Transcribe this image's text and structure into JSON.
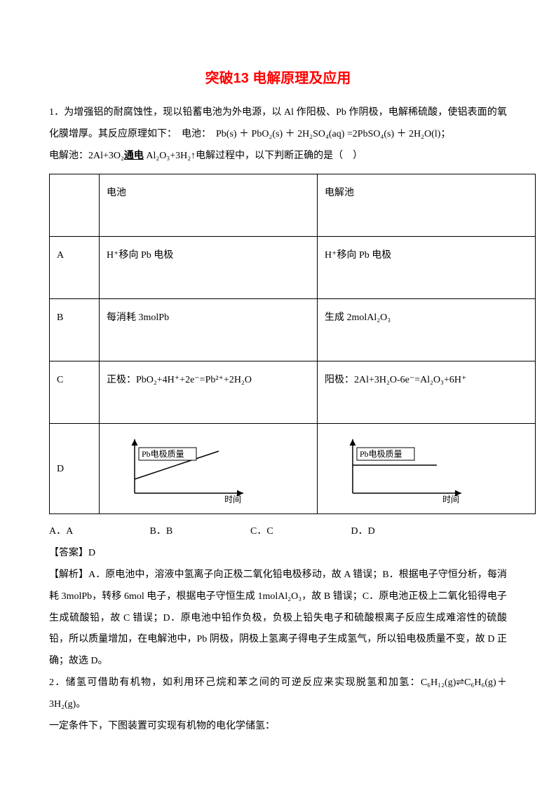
{
  "title": "突破13 电解原理及应用",
  "q1": {
    "intro1": "1．为增强铝的耐腐蚀性，现以铅蓄电池为外电源，以 Al 作阳极、Pb 作阴极，电解稀硫酸，使铝表面的氧化膜增厚。其反应原理如下：　电池：　Pb(s) ＋ PbO₂(s) ＋ 2H₂SO₄(aq) =2PbSO₄(s) ＋ 2H₂O(l)；",
    "intro2_pre": "电解池：2Al+3O₂",
    "intro2_mid": "通电",
    "intro2_post": "Al₂O₃+3H₂↑电解过程中，以下判断正确的是（　）",
    "header_c2": "电池",
    "header_c3": "电解池",
    "rowA_c1": "A",
    "rowA_c2": "H⁺移向 Pb 电极",
    "rowA_c3": "H⁺移向 Pb 电极",
    "rowB_c1": "B",
    "rowB_c2": "每消耗 3molPb",
    "rowB_c3": "生成 2molAl₂O₃",
    "rowC_c1": "C",
    "rowC_c2": "正极：PbO₂+4H⁺+2e⁻=Pb²⁺+2H₂O",
    "rowC_c3": "阳极：2Al+3H₂O-6e⁻=Al₂O₃+6H⁺",
    "rowD_c1": "D",
    "graph_ylabel": "Pb电极质量",
    "graph_xlabel": "时间",
    "graph_stroke": "#000000",
    "graph_left_rising": true,
    "graph_right_rising": false,
    "optA": "A．A",
    "optB": "B．B",
    "optC": "C．C",
    "optD": "D．D",
    "answer": "【答案】D",
    "explain": "【解析】A．原电池中，溶液中氢离子向正极二氧化铅电极移动，故 A 错误；B．根据电子守恒分析，每消耗 3molPb，转移 6mol 电子，根据电子守恒生成 1molAl₂O₃，故 B 错误；C．原电池正极上二氧化铅得电子生成硫酸铅，故 C 错误；D．原电池中铅作负极，负极上铅失电子和硫酸根离子反应生成难溶性的硫酸铅，所以质量增加，在电解池中，Pb 阴极，阴极上氢离子得电子生成氢气，所以铅电极质量不变，故 D 正确；故选 D。"
  },
  "q2": {
    "line1": "2．储氢可借助有机物，如利用环己烷和苯之间的可逆反应来实现脱氢和加氢：C₆H₁₂(g)⇌C₆H₆(g)＋3H₂(g)。",
    "line2": "一定条件下，下图装置可实现有机物的电化学储氢："
  }
}
